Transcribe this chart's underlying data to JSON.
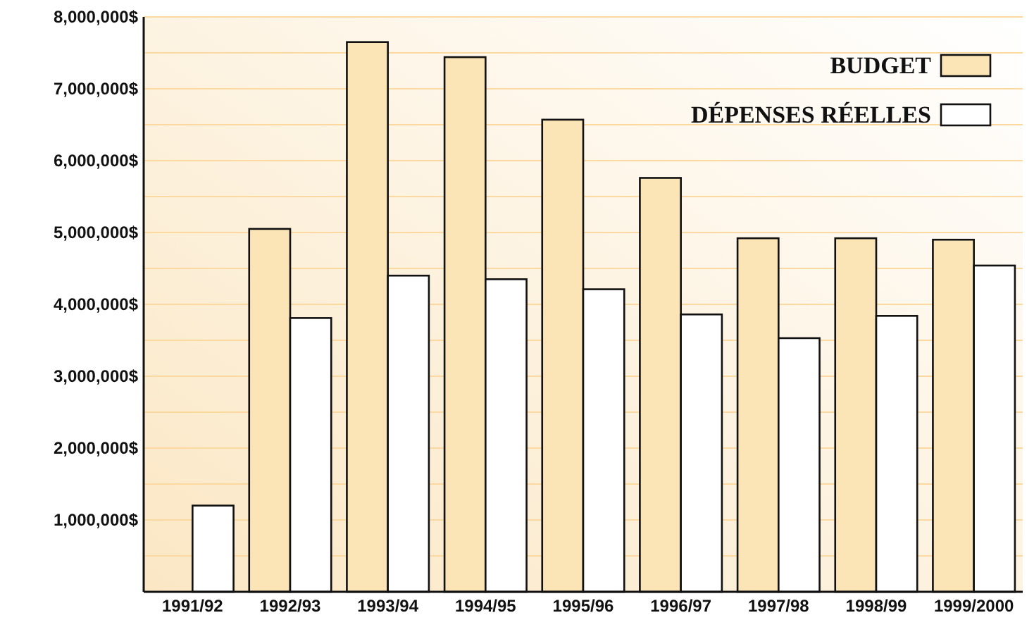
{
  "chart_data": {
    "type": "bar",
    "categories": [
      "1991/92",
      "1992/93",
      "1993/94",
      "1994/95",
      "1995/96",
      "1996/97",
      "1997/98",
      "1998/99",
      "1999/2000"
    ],
    "series": [
      {
        "name": "BUDGET",
        "color": "#fbe4b5",
        "values": [
          null,
          5050000,
          7650000,
          7440000,
          6570000,
          5760000,
          4920000,
          4920000,
          4900000
        ]
      },
      {
        "name": "DÉPENSES RÉELLES",
        "color": "#ffffff",
        "values": [
          1200000,
          3810000,
          4400000,
          4350000,
          4210000,
          3860000,
          3530000,
          3840000,
          4540000
        ]
      }
    ],
    "ylim": [
      0,
      8000000
    ],
    "yticks": [
      {
        "value": 500000,
        "label": null
      },
      {
        "value": 1000000,
        "label": "1,000,000$"
      },
      {
        "value": 1500000,
        "label": null
      },
      {
        "value": 2000000,
        "label": "2,000,000$"
      },
      {
        "value": 2500000,
        "label": null
      },
      {
        "value": 3000000,
        "label": "3,000,000$"
      },
      {
        "value": 3500000,
        "label": null
      },
      {
        "value": 4000000,
        "label": "4,000,000$"
      },
      {
        "value": 4500000,
        "label": null
      },
      {
        "value": 5000000,
        "label": "5,000,000$"
      },
      {
        "value": 5500000,
        "label": null
      },
      {
        "value": 6000000,
        "label": "6,000,000$"
      },
      {
        "value": 6500000,
        "label": null
      },
      {
        "value": 7000000,
        "label": "7,000,000$"
      },
      {
        "value": 7500000,
        "label": null
      },
      {
        "value": 8000000,
        "label": "8,000,000$"
      }
    ],
    "grid": "y",
    "legend": "top right"
  }
}
